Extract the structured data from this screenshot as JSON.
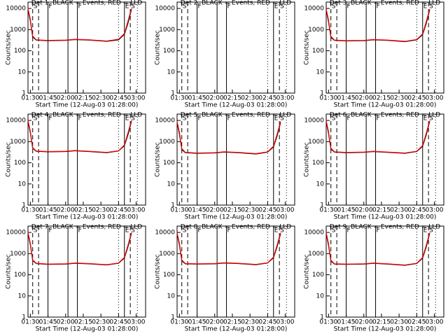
{
  "chart_data": [
    {
      "type": "line",
      "title": "Det 1, BLACK = Events, RED = LLD",
      "xlabel": "Start Time (12-Aug-03 01:28:00)",
      "ylabel": "Counts/sec",
      "log_y": true,
      "xlim": [
        "01:28",
        "03:08"
      ],
      "ylim": [
        1,
        20000
      ],
      "yticks": [
        1,
        10,
        100,
        1000,
        10000
      ],
      "xticks": [
        "01:30",
        "01:45",
        "02:00",
        "02:15",
        "02:30",
        "02:45",
        "03:00"
      ],
      "x": [
        "01:28",
        "01:30",
        "01:32",
        "01:35",
        "01:45",
        "02:00",
        "02:08",
        "02:20",
        "02:35",
        "02:45",
        "02:50",
        "02:53",
        "02:56"
      ],
      "series": [
        {
          "color": "#000000",
          "values": [
            9000,
            2500,
            450,
            320,
            300,
            310,
            340,
            320,
            280,
            330,
            600,
            2000,
            9000
          ]
        },
        {
          "color": "#ff0000",
          "values": [
            10000,
            3000,
            500,
            330,
            310,
            320,
            350,
            330,
            290,
            350,
            650,
            2500,
            10000
          ]
        }
      ],
      "markers": [
        {
          "x": "01:32",
          "style": "dashed",
          "label": "S"
        },
        {
          "x": "01:37",
          "style": "dashed"
        },
        {
          "x": "01:45",
          "style": "solid",
          "label": "F"
        },
        {
          "x": "02:02",
          "style": "solid"
        },
        {
          "x": "02:10",
          "style": "solid",
          "label": "F"
        },
        {
          "x": "02:45",
          "style": "dotted"
        },
        {
          "x": "02:50",
          "style": "solid",
          "label": "E"
        },
        {
          "x": "02:55",
          "style": "dashed",
          "label": "S"
        },
        {
          "x": "03:01",
          "style": "dotted"
        }
      ]
    },
    {
      "type": "line",
      "title": "Det 2, BLACK = Events, RED = LLD",
      "xlabel": "Start Time (12-Aug-03 01:28:00)",
      "ylabel": "Counts/sec",
      "log_y": true,
      "xlim": [
        "01:28",
        "03:08"
      ],
      "ylim": [
        1,
        20000
      ],
      "yticks": [
        1,
        10,
        100,
        1000,
        10000
      ],
      "xticks": [
        "01:30",
        "01:45",
        "02:00",
        "02:15",
        "02:30",
        "02:45",
        "03:00"
      ],
      "markers": [
        {
          "x": "01:32",
          "style": "dashed",
          "label": "S"
        },
        {
          "x": "01:37",
          "style": "dashed"
        },
        {
          "x": "01:45",
          "style": "solid",
          "label": "F"
        },
        {
          "x": "02:02",
          "style": "solid"
        },
        {
          "x": "02:10",
          "style": "solid",
          "label": "F"
        },
        {
          "x": "02:45",
          "style": "dotted"
        },
        {
          "x": "02:50",
          "style": "solid",
          "label": "E"
        },
        {
          "x": "02:55",
          "style": "dashed",
          "label": "S"
        },
        {
          "x": "03:01",
          "style": "dotted"
        }
      ]
    },
    {
      "type": "line",
      "title": "Det 3, BLACK = Events, RED = LLD",
      "xlabel": "Start Time (12-Aug-03 01:28:00)",
      "ylabel": "Counts/sec",
      "log_y": true,
      "xlim": [
        "01:28",
        "03:08"
      ],
      "ylim": [
        1,
        20000
      ],
      "yticks": [
        1,
        10,
        100,
        1000,
        10000
      ],
      "xticks": [
        "01:30",
        "01:45",
        "02:00",
        "02:15",
        "02:30",
        "02:45",
        "03:00"
      ],
      "x": [
        "01:28",
        "01:30",
        "01:32",
        "01:35",
        "01:45",
        "02:00",
        "02:08",
        "02:20",
        "02:35",
        "02:45",
        "02:50",
        "02:53",
        "02:56"
      ],
      "series": [
        {
          "color": "#000000",
          "values": [
            8500,
            2300,
            430,
            310,
            290,
            300,
            330,
            310,
            270,
            330,
            580,
            1900,
            8500
          ]
        },
        {
          "color": "#ff0000",
          "values": [
            9500,
            2800,
            480,
            320,
            300,
            310,
            340,
            320,
            280,
            340,
            630,
            2300,
            9500
          ]
        }
      ],
      "markers": [
        {
          "x": "01:32",
          "style": "dashed",
          "label": "S"
        },
        {
          "x": "01:37",
          "style": "dashed"
        },
        {
          "x": "01:45",
          "style": "solid",
          "label": "F"
        },
        {
          "x": "02:02",
          "style": "solid"
        },
        {
          "x": "02:10",
          "style": "solid",
          "label": "F"
        },
        {
          "x": "02:45",
          "style": "dotted"
        },
        {
          "x": "02:50",
          "style": "solid",
          "label": "E"
        },
        {
          "x": "02:55",
          "style": "dashed",
          "label": "S"
        },
        {
          "x": "03:01",
          "style": "dotted"
        }
      ]
    },
    {
      "type": "line",
      "title": "Det 4, BLACK = Events, RED = LLD",
      "xlabel": "Start Time (12-Aug-03 01:28:00)",
      "ylabel": "Counts/sec",
      "log_y": true,
      "xlim": [
        "01:28",
        "03:08"
      ],
      "ylim": [
        1,
        20000
      ],
      "yticks": [
        1,
        10,
        100,
        1000,
        10000
      ],
      "xticks": [
        "01:30",
        "01:45",
        "02:00",
        "02:15",
        "02:30",
        "02:45",
        "03:00"
      ],
      "x": [
        "01:28",
        "01:30",
        "01:32",
        "01:35",
        "01:45",
        "02:00",
        "02:08",
        "02:20",
        "02:35",
        "02:45",
        "02:50",
        "02:53",
        "02:56"
      ],
      "series": [
        {
          "color": "#000000",
          "values": [
            9000,
            2600,
            480,
            350,
            330,
            340,
            370,
            340,
            300,
            360,
            650,
            2100,
            9000
          ]
        },
        {
          "color": "#ff0000",
          "values": [
            10000,
            3100,
            520,
            360,
            340,
            350,
            380,
            350,
            310,
            370,
            700,
            2600,
            10000
          ]
        }
      ],
      "markers": [
        {
          "x": "01:32",
          "style": "dashed",
          "label": "S"
        },
        {
          "x": "01:37",
          "style": "dashed"
        },
        {
          "x": "01:45",
          "style": "solid",
          "label": "F"
        },
        {
          "x": "02:02",
          "style": "solid"
        },
        {
          "x": "02:10",
          "style": "solid",
          "label": "F"
        },
        {
          "x": "02:45",
          "style": "dotted"
        },
        {
          "x": "02:50",
          "style": "solid",
          "label": "E"
        },
        {
          "x": "02:55",
          "style": "dashed",
          "label": "S"
        },
        {
          "x": "03:01",
          "style": "dotted"
        }
      ]
    },
    {
      "type": "line",
      "title": "Det 5, BLACK = Events, RED = LLD",
      "xlabel": "Start Time (12-Aug-03 01:28:00)",
      "ylabel": "Counts/sec",
      "log_y": true,
      "xlim": [
        "01:28",
        "03:08"
      ],
      "ylim": [
        1,
        20000
      ],
      "yticks": [
        1,
        10,
        100,
        1000,
        10000
      ],
      "xticks": [
        "01:30",
        "01:45",
        "02:00",
        "02:15",
        "02:30",
        "02:45",
        "03:00"
      ],
      "x": [
        "01:28",
        "01:30",
        "01:32",
        "01:35",
        "01:45",
        "02:00",
        "02:08",
        "02:20",
        "02:35",
        "02:45",
        "02:50",
        "02:53",
        "02:56"
      ],
      "series": [
        {
          "color": "#000000",
          "values": [
            8000,
            2200,
            420,
            300,
            280,
            290,
            320,
            300,
            260,
            320,
            560,
            1800,
            8000
          ]
        },
        {
          "color": "#ff0000",
          "values": [
            9000,
            2700,
            470,
            310,
            290,
            300,
            330,
            310,
            270,
            330,
            610,
            2200,
            9000
          ]
        }
      ],
      "markers": [
        {
          "x": "01:32",
          "style": "dashed",
          "label": "S"
        },
        {
          "x": "01:37",
          "style": "dashed"
        },
        {
          "x": "01:45",
          "style": "solid",
          "label": "F"
        },
        {
          "x": "02:02",
          "style": "solid"
        },
        {
          "x": "02:10",
          "style": "solid",
          "label": "F"
        },
        {
          "x": "02:45",
          "style": "dotted"
        },
        {
          "x": "02:50",
          "style": "solid",
          "label": "E"
        },
        {
          "x": "02:55",
          "style": "dashed",
          "label": "S"
        },
        {
          "x": "03:01",
          "style": "dotted"
        }
      ]
    },
    {
      "type": "line",
      "title": "Det 6, BLACK = Events, RED = LLD",
      "xlabel": "Start Time (12-Aug-03 01:28:00)",
      "ylabel": "Counts/sec",
      "log_y": true,
      "xlim": [
        "01:28",
        "03:08"
      ],
      "ylim": [
        1,
        20000
      ],
      "yticks": [
        1,
        10,
        100,
        1000,
        10000
      ],
      "xticks": [
        "01:30",
        "01:45",
        "02:00",
        "02:15",
        "02:30",
        "02:45",
        "03:00"
      ],
      "x": [
        "01:28",
        "01:30",
        "01:32",
        "01:35",
        "01:45",
        "02:00",
        "02:08",
        "02:20",
        "02:35",
        "02:45",
        "02:50",
        "02:53",
        "02:56"
      ],
      "series": [
        {
          "color": "#000000",
          "values": [
            8800,
            2400,
            440,
            320,
            300,
            310,
            340,
            310,
            280,
            340,
            600,
            2000,
            8800
          ]
        },
        {
          "color": "#ff0000",
          "values": [
            9800,
            2900,
            490,
            330,
            310,
            320,
            350,
            320,
            290,
            350,
            650,
            2400,
            9800
          ]
        }
      ],
      "markers": [
        {
          "x": "01:32",
          "style": "dashed",
          "label": "S"
        },
        {
          "x": "01:37",
          "style": "dashed"
        },
        {
          "x": "01:45",
          "style": "solid",
          "label": "F"
        },
        {
          "x": "02:02",
          "style": "solid"
        },
        {
          "x": "02:10",
          "style": "solid",
          "label": "F"
        },
        {
          "x": "02:45",
          "style": "dotted"
        },
        {
          "x": "02:50",
          "style": "solid",
          "label": "E"
        },
        {
          "x": "02:55",
          "style": "dashed",
          "label": "S"
        },
        {
          "x": "03:01",
          "style": "dotted"
        }
      ]
    },
    {
      "type": "line",
      "title": "Det 7, BLACK = Events, RED = LLD",
      "xlabel": "Start Time (12-Aug-03 01:28:00)",
      "ylabel": "Counts/sec",
      "log_y": true,
      "xlim": [
        "01:28",
        "03:08"
      ],
      "ylim": [
        1,
        20000
      ],
      "yticks": [
        1,
        10,
        100,
        1000,
        10000
      ],
      "xticks": [
        "01:30",
        "01:45",
        "02:00",
        "02:15",
        "02:30",
        "02:45",
        "03:00"
      ],
      "x": [
        "01:28",
        "01:30",
        "01:32",
        "01:35",
        "01:45",
        "02:00",
        "02:08",
        "02:20",
        "02:35",
        "02:45",
        "02:50",
        "02:53",
        "02:56"
      ],
      "series": [
        {
          "color": "#000000",
          "values": [
            9200,
            2600,
            470,
            340,
            310,
            320,
            350,
            330,
            290,
            350,
            620,
            2100,
            9200
          ]
        },
        {
          "color": "#ff0000",
          "values": [
            10000,
            3100,
            510,
            350,
            320,
            330,
            360,
            340,
            300,
            360,
            670,
            2500,
            10000
          ]
        }
      ],
      "markers": [
        {
          "x": "01:32",
          "style": "dashed",
          "label": "S"
        },
        {
          "x": "01:37",
          "style": "dashed"
        },
        {
          "x": "01:45",
          "style": "solid",
          "label": "F"
        },
        {
          "x": "02:02",
          "style": "solid"
        },
        {
          "x": "02:10",
          "style": "solid",
          "label": "F"
        },
        {
          "x": "02:45",
          "style": "dotted"
        },
        {
          "x": "02:50",
          "style": "solid",
          "label": "E"
        },
        {
          "x": "02:55",
          "style": "dashed",
          "label": "S"
        },
        {
          "x": "03:01",
          "style": "dotted"
        }
      ]
    },
    {
      "type": "line",
      "title": "Det 8, BLACK = Events, RED = LLD",
      "xlabel": "Start Time (12-Aug-03 01:28:00)",
      "ylabel": "Counts/sec",
      "log_y": true,
      "xlim": [
        "01:28",
        "03:08"
      ],
      "ylim": [
        1,
        20000
      ],
      "yticks": [
        1,
        10,
        100,
        1000,
        10000
      ],
      "xticks": [
        "01:30",
        "01:45",
        "02:00",
        "02:15",
        "02:30",
        "02:45",
        "03:00"
      ],
      "x": [
        "01:28",
        "01:30",
        "01:32",
        "01:35",
        "01:45",
        "02:00",
        "02:08",
        "02:20",
        "02:35",
        "02:45",
        "02:50",
        "02:53",
        "02:56"
      ],
      "series": [
        {
          "color": "#000000",
          "values": [
            8700,
            2500,
            460,
            330,
            320,
            330,
            360,
            340,
            300,
            360,
            640,
            2100,
            8700
          ]
        },
        {
          "color": "#ff0000",
          "values": [
            9700,
            3000,
            500,
            340,
            330,
            340,
            370,
            350,
            310,
            370,
            690,
            2500,
            9700
          ]
        }
      ],
      "markers": [
        {
          "x": "01:32",
          "style": "dashed",
          "label": "S"
        },
        {
          "x": "01:37",
          "style": "dashed"
        },
        {
          "x": "01:45",
          "style": "solid",
          "label": "F"
        },
        {
          "x": "02:02",
          "style": "solid"
        },
        {
          "x": "02:10",
          "style": "solid",
          "label": "F"
        },
        {
          "x": "02:45",
          "style": "dotted"
        },
        {
          "x": "02:50",
          "style": "solid",
          "label": "E"
        },
        {
          "x": "02:55",
          "style": "dashed",
          "label": "S"
        },
        {
          "x": "03:01",
          "style": "dotted"
        }
      ]
    },
    {
      "type": "line",
      "title": "Det 9, BLACK = Events, RED = LLD",
      "xlabel": "Start Time (12-Aug-03 01:28:00)",
      "ylabel": "Counts/sec",
      "log_y": true,
      "xlim": [
        "01:28",
        "03:08"
      ],
      "ylim": [
        1,
        20000
      ],
      "yticks": [
        1,
        10,
        100,
        1000,
        10000
      ],
      "xticks": [
        "01:30",
        "01:45",
        "02:00",
        "02:15",
        "02:30",
        "02:45",
        "03:00"
      ],
      "x": [
        "01:28",
        "01:30",
        "01:32",
        "01:35",
        "01:45",
        "02:00",
        "02:08",
        "02:20",
        "02:35",
        "02:45",
        "02:50",
        "02:53",
        "02:56"
      ],
      "series": [
        {
          "color": "#000000",
          "values": [
            8900,
            2400,
            450,
            320,
            310,
            320,
            350,
            320,
            280,
            340,
            610,
            2000,
            8900
          ]
        },
        {
          "color": "#ff0000",
          "values": [
            9900,
            2900,
            490,
            330,
            320,
            330,
            360,
            330,
            290,
            350,
            660,
            2400,
            9900
          ]
        }
      ],
      "markers": [
        {
          "x": "01:32",
          "style": "dashed",
          "label": "S"
        },
        {
          "x": "01:37",
          "style": "dashed"
        },
        {
          "x": "01:45",
          "style": "solid",
          "label": "F"
        },
        {
          "x": "02:02",
          "style": "solid"
        },
        {
          "x": "02:10",
          "style": "solid",
          "label": "F"
        },
        {
          "x": "02:45",
          "style": "dotted"
        },
        {
          "x": "02:50",
          "style": "solid",
          "label": "E"
        },
        {
          "x": "02:55",
          "style": "dashed",
          "label": "S"
        },
        {
          "x": "03:01",
          "style": "dotted"
        }
      ]
    }
  ]
}
